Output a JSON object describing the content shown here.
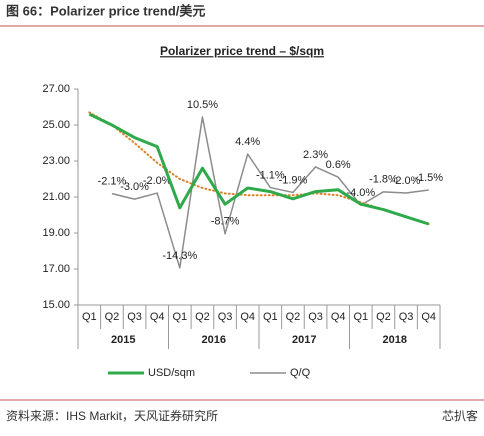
{
  "header": "图 66：Polarizer price trend/美元",
  "source": "资料来源：IHS Markit，天风证券研究所",
  "watermark": "芯扒客",
  "chart_data": {
    "type": "line",
    "title": "Polarizer price trend – $/sqm",
    "categories": [
      "Q1",
      "Q2",
      "Q3",
      "Q4",
      "Q1",
      "Q2",
      "Q3",
      "Q4",
      "Q1",
      "Q2",
      "Q3",
      "Q4",
      "Q1",
      "Q2",
      "Q3",
      "Q4"
    ],
    "x_groups": [
      "2015",
      "2016",
      "2017",
      "2018"
    ],
    "ylim": [
      15,
      27
    ],
    "yticks": [
      {
        "value": 15,
        "label": "15.00"
      },
      {
        "value": 17,
        "label": "17.00"
      },
      {
        "value": 19,
        "label": "19.00"
      },
      {
        "value": 21,
        "label": "21.00"
      },
      {
        "value": 23,
        "label": "23.00"
      },
      {
        "value": 25,
        "label": "25.00"
      },
      {
        "value": 27,
        "label": "27.00"
      }
    ],
    "y2lim": [
      -20.4,
      15.1
    ],
    "grid": false,
    "legend": "bottom",
    "series": [
      {
        "name": "USD/sqm",
        "color": "#2eaa4a",
        "width": 3,
        "values": [
          25.6,
          25.0,
          24.3,
          23.8,
          20.4,
          22.6,
          20.6,
          21.5,
          21.3,
          20.9,
          21.3,
          21.4,
          20.6,
          20.3,
          19.9,
          19.5
        ]
      },
      {
        "name": "Q/Q",
        "color": "#8c8c8c",
        "width": 1.5,
        "axis": "y2",
        "values": [
          null,
          -2.1,
          -3.0,
          -2.0,
          -14.3,
          10.5,
          -8.7,
          4.4,
          -1.1,
          -1.9,
          2.3,
          0.6,
          -4.0,
          -1.8,
          -2.0,
          -1.5
        ],
        "value_labels": [
          null,
          "-2.1%",
          "-3.0%",
          "-2.0%",
          "-14.3%",
          "10.5%",
          "-8.7%",
          "4.4%",
          "-1.1%",
          "-1.9%",
          "2.3%",
          "0.6%",
          "-4.0%",
          "-1.8%",
          "-2.0%",
          "-1.5%"
        ]
      },
      {
        "color": "#d9822b",
        "width": 2,
        "line_style": "dotted",
        "values": [
          25.7,
          25.0,
          24.0,
          22.9,
          22.0,
          21.5,
          21.2,
          21.1,
          21.1,
          21.1,
          21.2,
          21.1,
          20.7,
          20.3,
          19.9,
          19.5
        ]
      }
    ]
  }
}
